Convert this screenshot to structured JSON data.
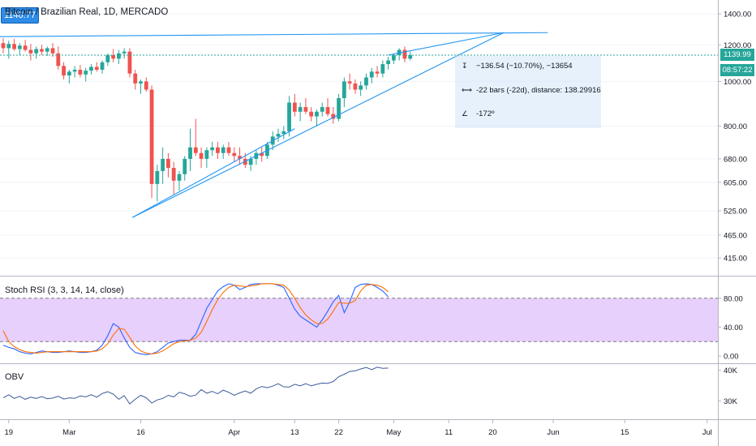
{
  "header": {
    "symbol_title": "Bitcoin / Brazilian Real, 1D, MERCADO",
    "price_badge": "1140.77"
  },
  "last_price_label": "1139.99",
  "countdown_label": "08:57:22",
  "measure": {
    "price_change": "−136.54 (−10.70%), −13654",
    "bars": "-22 bars (-22d), distance: 138.29916",
    "angle": "-172º",
    "icons": [
      "vertical-measure-icon",
      "horizontal-measure-icon",
      "angle-icon"
    ]
  },
  "rsi_panel": {
    "title": "Stoch RSI (3, 3, 14, 14, close)"
  },
  "obv_panel": {
    "title": "OBV"
  },
  "colors": {
    "up": "#26a69a",
    "down": "#ef5350",
    "trend": "#2196f3",
    "k_line": "#2962ff",
    "d_line": "#ff6d00",
    "rsi_band": "#e1c4fb",
    "obv": "#3c5a99",
    "last_price": "#26a69a"
  },
  "chart_data": [
    {
      "type": "candlestick",
      "title": "Bitcoin / Brazilian Real, 1D, MERCADO",
      "ylim": [
        380,
        1500
      ],
      "yscale": "log",
      "y_ticks": [
        1400,
        1200,
        1000,
        800,
        680,
        605,
        525,
        465,
        415
      ],
      "y_tick_labels": [
        "1400.00",
        "1200.00",
        "1000.00",
        "800.00",
        "680.00",
        "605.00",
        "525.00",
        "465.00",
        "415.00"
      ],
      "x_ticks": [
        "19",
        "Mar",
        "16",
        "Apr",
        "13",
        "22",
        "May",
        "11",
        "20",
        "Jun",
        "15",
        "Jul"
      ],
      "last_price": 1139.99,
      "candles": [
        [
          1210,
          1240,
          1150,
          1180
        ],
        [
          1180,
          1225,
          1120,
          1205
        ],
        [
          1205,
          1235,
          1165,
          1175
        ],
        [
          1175,
          1210,
          1140,
          1195
        ],
        [
          1195,
          1230,
          1160,
          1170
        ],
        [
          1170,
          1205,
          1110,
          1150
        ],
        [
          1150,
          1190,
          1120,
          1175
        ],
        [
          1175,
          1200,
          1140,
          1160
        ],
        [
          1160,
          1190,
          1135,
          1180
        ],
        [
          1180,
          1210,
          1130,
          1150
        ],
        [
          1150,
          1190,
          1060,
          1080
        ],
        [
          1080,
          1100,
          1010,
          1030
        ],
        [
          1030,
          1060,
          990,
          1050
        ],
        [
          1050,
          1080,
          1020,
          1060
        ],
        [
          1060,
          1085,
          1020,
          1035
        ],
        [
          1035,
          1070,
          1000,
          1055
        ],
        [
          1055,
          1090,
          1035,
          1075
        ],
        [
          1075,
          1100,
          1050,
          1060
        ],
        [
          1060,
          1110,
          1040,
          1100
        ],
        [
          1100,
          1150,
          1080,
          1140
        ],
        [
          1140,
          1175,
          1100,
          1120
        ],
        [
          1120,
          1170,
          1090,
          1150
        ],
        [
          1150,
          1180,
          1120,
          1160
        ],
        [
          1160,
          1180,
          1020,
          1040
        ],
        [
          1040,
          1060,
          960,
          990
        ],
        [
          990,
          1010,
          940,
          1000
        ],
        [
          1000,
          1020,
          950,
          960
        ],
        [
          960,
          980,
          560,
          600
        ],
        [
          600,
          660,
          550,
          640
        ],
        [
          640,
          720,
          600,
          680
        ],
        [
          680,
          700,
          620,
          650
        ],
        [
          650,
          670,
          570,
          610
        ],
        [
          610,
          640,
          580,
          630
        ],
        [
          630,
          690,
          610,
          680
        ],
        [
          680,
          790,
          640,
          720
        ],
        [
          720,
          830,
          690,
          700
        ],
        [
          700,
          720,
          650,
          680
        ],
        [
          680,
          720,
          650,
          710
        ],
        [
          710,
          740,
          690,
          720
        ],
        [
          720,
          740,
          680,
          700
        ],
        [
          700,
          730,
          680,
          720
        ],
        [
          720,
          740,
          690,
          700
        ],
        [
          700,
          720,
          670,
          690
        ],
        [
          690,
          720,
          660,
          680
        ],
        [
          680,
          700,
          650,
          660
        ],
        [
          660,
          690,
          640,
          680
        ],
        [
          680,
          710,
          660,
          700
        ],
        [
          700,
          720,
          670,
          690
        ],
        [
          690,
          740,
          680,
          730
        ],
        [
          730,
          780,
          710,
          760
        ],
        [
          760,
          790,
          740,
          770
        ],
        [
          770,
          800,
          750,
          780
        ],
        [
          780,
          930,
          760,
          900
        ],
        [
          900,
          940,
          840,
          860
        ],
        [
          860,
          900,
          820,
          880
        ],
        [
          880,
          920,
          850,
          860
        ],
        [
          860,
          880,
          820,
          840
        ],
        [
          840,
          870,
          800,
          860
        ],
        [
          860,
          900,
          840,
          880
        ],
        [
          880,
          920,
          840,
          850
        ],
        [
          850,
          880,
          810,
          830
        ],
        [
          830,
          940,
          820,
          920
        ],
        [
          920,
          1020,
          880,
          1000
        ],
        [
          1000,
          1040,
          960,
          990
        ],
        [
          990,
          1010,
          940,
          960
        ],
        [
          960,
          1000,
          930,
          980
        ],
        [
          980,
          1040,
          960,
          1020
        ],
        [
          1020,
          1070,
          990,
          1050
        ],
        [
          1050,
          1080,
          1020,
          1040
        ],
        [
          1040,
          1110,
          1020,
          1090
        ],
        [
          1090,
          1130,
          1060,
          1110
        ],
        [
          1110,
          1150,
          1090,
          1140
        ],
        [
          1140,
          1180,
          1110,
          1170
        ],
        [
          1170,
          1190,
          1100,
          1120
        ],
        [
          1120,
          1160,
          1110,
          1140
        ]
      ]
    },
    {
      "type": "line",
      "title": "Stoch RSI (3, 3, 14, 14, close)",
      "ylim": [
        -10,
        110
      ],
      "y_ticks": [
        80,
        40,
        0
      ],
      "y_tick_labels": [
        "80.00",
        "40.00",
        "0.00"
      ],
      "band": [
        20,
        80
      ],
      "series": [
        {
          "name": "K",
          "values": [
            15,
            12,
            10,
            6,
            4,
            3,
            5,
            7,
            6,
            5,
            5,
            6,
            7,
            6,
            5,
            5,
            6,
            8,
            15,
            28,
            45,
            40,
            25,
            12,
            5,
            3,
            2,
            3,
            6,
            12,
            18,
            20,
            22,
            22,
            22,
            30,
            48,
            66,
            78,
            90,
            96,
            100,
            98,
            92,
            95,
            99,
            100,
            100,
            100,
            100,
            98,
            95,
            80,
            65,
            55,
            50,
            45,
            40,
            50,
            62,
            75,
            84,
            60,
            75,
            95,
            99,
            100,
            99,
            95,
            90,
            82
          ]
        },
        {
          "name": "D",
          "values": [
            35,
            20,
            13,
            9,
            6,
            5,
            4,
            5,
            6,
            6,
            6,
            6,
            6,
            6,
            6,
            6,
            6,
            7,
            10,
            17,
            29,
            38,
            37,
            26,
            14,
            7,
            4,
            3,
            4,
            7,
            12,
            17,
            20,
            21,
            22,
            25,
            33,
            48,
            64,
            78,
            88,
            95,
            98,
            97,
            96,
            97,
            98,
            100,
            100,
            100,
            99,
            98,
            91,
            80,
            67,
            57,
            50,
            45,
            45,
            51,
            62,
            74,
            73,
            73,
            77,
            90,
            98,
            99,
            98,
            95,
            89
          ]
        }
      ]
    },
    {
      "type": "line",
      "title": "OBV",
      "y_ticks": [
        40000,
        30000
      ],
      "y_tick_labels": [
        "40K",
        "30K"
      ],
      "ylim": [
        24000,
        42000
      ],
      "series": [
        {
          "name": "OBV",
          "values": [
            31000,
            32000,
            30800,
            31500,
            30500,
            31200,
            30800,
            31400,
            30700,
            30900,
            31500,
            30600,
            31000,
            30800,
            31600,
            31300,
            32000,
            31200,
            32400,
            33000,
            32200,
            30500,
            31700,
            29000,
            30500,
            31800,
            31000,
            29300,
            30300,
            30800,
            31800,
            31300,
            32800,
            32300,
            31500,
            31900,
            33700,
            32500,
            33100,
            32300,
            33500,
            32800,
            31800,
            32600,
            33200,
            32500,
            33900,
            34700,
            34300,
            34800,
            35600,
            34600,
            34500,
            35400,
            34900,
            35600,
            34900,
            35400,
            35800,
            35700,
            36300,
            37900,
            38700,
            39600,
            39800,
            40400,
            40900,
            40200,
            41000,
            40600,
            40700
          ]
        }
      ]
    }
  ]
}
